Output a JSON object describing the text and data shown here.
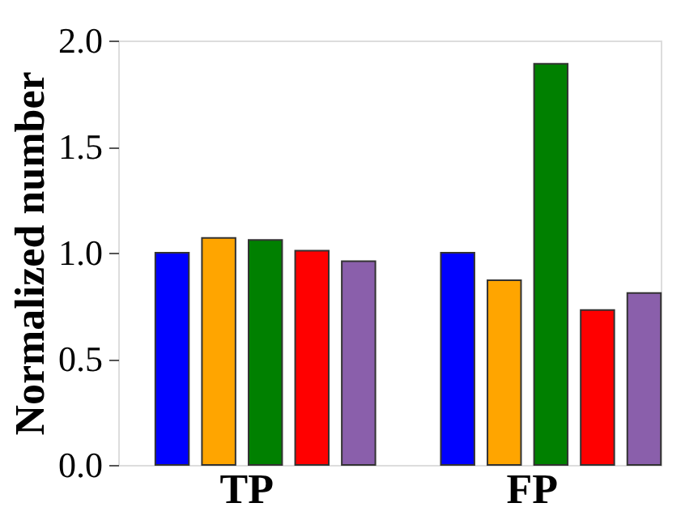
{
  "chart_data": {
    "type": "bar",
    "ylabel": "Normalized number",
    "categories": [
      "TP",
      "FP"
    ],
    "series": [
      {
        "color": "#0000ff",
        "values": [
          1.0,
          1.0
        ]
      },
      {
        "color": "#ffa500",
        "values": [
          1.07,
          0.87
        ]
      },
      {
        "color": "#008000",
        "values": [
          1.06,
          1.89
        ]
      },
      {
        "color": "#ff0000",
        "values": [
          1.01,
          0.73
        ]
      },
      {
        "color": "#8a5fab",
        "values": [
          0.96,
          0.81
        ]
      }
    ],
    "ylim": [
      0,
      2.0
    ],
    "yticks": [
      {
        "value": 0,
        "label": "0.0"
      },
      {
        "value": 0.5,
        "label": "0.5"
      },
      {
        "value": 1.0,
        "label": "1.0"
      },
      {
        "value": 1.5,
        "label": "1.5"
      },
      {
        "value": 2.0,
        "label": "2.0"
      }
    ],
    "grid": false,
    "legend": false
  }
}
